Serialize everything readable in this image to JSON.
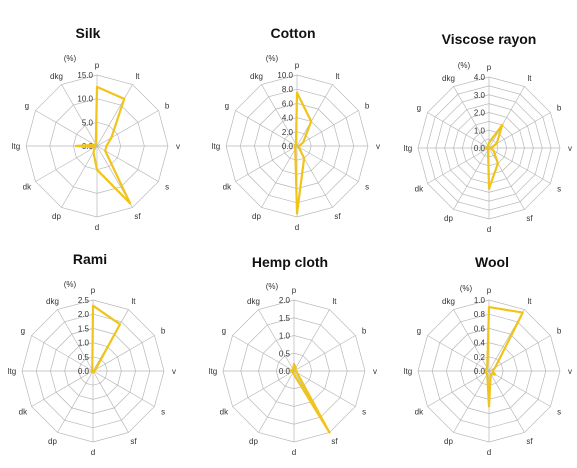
{
  "chart_data": [
    {
      "type": "radar",
      "title": "Silk",
      "unit": "(%)",
      "axes": [
        "p",
        "lt",
        "b",
        "v",
        "s",
        "sf",
        "d",
        "dp",
        "dk",
        "ltg",
        "g",
        "dkg"
      ],
      "ticks": [
        "0.0",
        "5.0",
        "10.0",
        "15.0"
      ],
      "rmax": 15,
      "ticks_labeled_every": 1,
      "series": [
        {
          "values": [
            12.5,
            11.5,
            3.5,
            2.0,
            2.0,
            14.0,
            5.0,
            1.5,
            0.5,
            4.5,
            0.5,
            0.5
          ]
        }
      ]
    },
    {
      "type": "radar",
      "title": "Cotton",
      "unit": "(%)",
      "axes": [
        "p",
        "lt",
        "b",
        "v",
        "s",
        "sf",
        "d",
        "dp",
        "dk",
        "ltg",
        "g",
        "dkg"
      ],
      "ticks": [
        "0.0",
        "2.0",
        "4.0",
        "6.0",
        "8.0",
        "10.0"
      ],
      "rmax": 10,
      "ticks_labeled_every": 1,
      "series": [
        {
          "values": [
            7.5,
            4.0,
            1.0,
            0.3,
            0.3,
            2.0,
            9.5,
            0.5,
            0.3,
            0.3,
            0.3,
            0.3
          ]
        }
      ]
    },
    {
      "type": "radar",
      "title": "Viscose rayon",
      "unit": "(%)",
      "axes": [
        "p",
        "lt",
        "b",
        "v",
        "s",
        "sf",
        "d",
        "dp",
        "dk",
        "ltg",
        "g",
        "dkg"
      ],
      "ticks": [
        "0.0",
        "1.0",
        "2.0",
        "3.0",
        "4.0"
      ],
      "rmax": 4,
      "ticks_labeled_every": 2,
      "series": [
        {
          "values": [
            0.3,
            1.5,
            0.5,
            0.1,
            0.3,
            1.0,
            2.3,
            0.1,
            0.1,
            0.2,
            0.1,
            0.1
          ]
        }
      ]
    },
    {
      "type": "radar",
      "title": "Rami",
      "unit": "(%)",
      "axes": [
        "p",
        "lt",
        "b",
        "v",
        "s",
        "sf",
        "d",
        "dp",
        "dk",
        "ltg",
        "g",
        "dkg"
      ],
      "ticks": [
        "0.0",
        "0.5",
        "1.0",
        "1.5",
        "2.0",
        "2.5"
      ],
      "rmax": 2.5,
      "ticks_labeled_every": 1,
      "series": [
        {
          "values": [
            2.3,
            1.9,
            0.1,
            0.05,
            0.05,
            0.05,
            0.05,
            0.05,
            0.05,
            0.05,
            0.05,
            0.05
          ]
        }
      ]
    },
    {
      "type": "radar",
      "title": "Hemp cloth",
      "unit": "(%)",
      "axes": [
        "p",
        "lt",
        "b",
        "v",
        "s",
        "sf",
        "d",
        "dp",
        "dk",
        "ltg",
        "g",
        "dkg"
      ],
      "ticks": [
        "0.0",
        "0.5",
        "1.0",
        "1.5",
        "2.0"
      ],
      "rmax": 2,
      "ticks_labeled_every": 1,
      "series": [
        {
          "values": [
            0.2,
            0.1,
            0.05,
            0.05,
            0.1,
            2.0,
            0.1,
            0.05,
            0.05,
            0.1,
            0.05,
            0.05
          ]
        }
      ]
    },
    {
      "type": "radar",
      "title": "Wool",
      "unit": "(%)",
      "axes": [
        "p",
        "lt",
        "b",
        "v",
        "s",
        "sf",
        "d",
        "dp",
        "dk",
        "ltg",
        "g",
        "dkg"
      ],
      "ticks": [
        "0.0",
        "0.2",
        "0.4",
        "0.6",
        "0.8",
        "1.0"
      ],
      "rmax": 1,
      "ticks_labeled_every": 1,
      "series": [
        {
          "values": [
            0.9,
            0.95,
            0.1,
            0.05,
            0.1,
            0.05,
            0.5,
            0.05,
            0.05,
            0.05,
            0.05,
            0.05
          ]
        }
      ]
    }
  ],
  "colors": {
    "series": "#f0c419",
    "grid": "#b8b8b8",
    "text": "#333333"
  }
}
